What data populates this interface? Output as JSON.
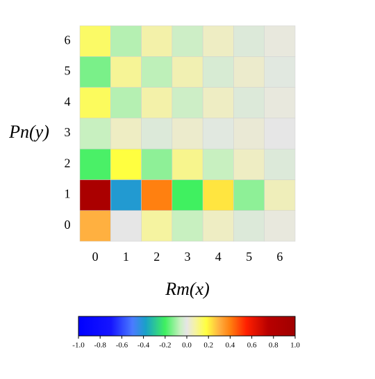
{
  "chart_data": {
    "type": "heatmap",
    "x_label": "Rm(x)",
    "y_label": "Pn(y)",
    "x_categories": [
      0,
      1,
      2,
      3,
      4,
      5,
      6
    ],
    "y_categories": [
      0,
      1,
      2,
      3,
      4,
      5,
      6
    ],
    "values": [
      [
        0.3,
        0,
        0.08,
        -0.06,
        0.04,
        -0.02,
        0.01
      ],
      [
        0.9,
        -0.4,
        0.4,
        -0.2,
        0.22,
        -0.12,
        0.05
      ],
      [
        -0.19,
        0.18,
        -0.12,
        0.1,
        -0.06,
        0.04,
        -0.02
      ],
      [
        -0.06,
        0.04,
        -0.02,
        0.03,
        -0.01,
        0.02,
        0
      ],
      [
        0.15,
        -0.08,
        0.07,
        -0.05,
        0.04,
        -0.02,
        0.01
      ],
      [
        -0.14,
        0.09,
        -0.07,
        0.06,
        -0.03,
        0.03,
        -0.01
      ],
      [
        0.14,
        -0.08,
        0.07,
        -0.05,
        0.04,
        -0.02,
        0.01
      ]
    ],
    "colorbar_lim": [
      -1,
      1
    ],
    "colorbar_ticks": [
      {
        "value": -1,
        "label": "-1.0"
      },
      -0.8,
      -0.6,
      -0.4,
      -0.2,
      {
        "value": 0,
        "label": "0.0"
      },
      0.2,
      0.4,
      0.6,
      0.8,
      {
        "value": 1,
        "label": "1.0"
      }
    ],
    "colormap": [
      [
        -1,
        "#0000ff"
      ],
      [
        -0.7,
        "#1515ff"
      ],
      [
        -0.5,
        "#4a7cff"
      ],
      [
        -0.38,
        "#1aa0c8"
      ],
      [
        -0.2,
        "#40f060"
      ],
      [
        -0.06,
        "#c8f0c0"
      ],
      [
        0,
        "#e6e6e6"
      ],
      [
        0.08,
        "#f5f3a0"
      ],
      [
        0.18,
        "#ffff40"
      ],
      [
        0.3,
        "#ffb040"
      ],
      [
        0.4,
        "#ff8010"
      ],
      [
        0.55,
        "#ff2000"
      ],
      [
        0.75,
        "#b80000"
      ],
      [
        1,
        "#a00000"
      ]
    ]
  }
}
